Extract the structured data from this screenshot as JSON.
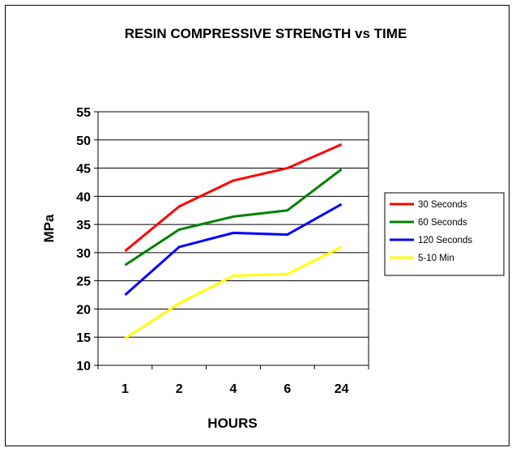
{
  "chart_data": {
    "type": "line",
    "title": "RESIN COMPRESSIVE STRENGTH vs TIME",
    "xlabel": "HOURS",
    "ylabel": "MPa",
    "categories": [
      "1",
      "2",
      "4",
      "6",
      "24"
    ],
    "ylim": [
      10,
      55
    ],
    "yticks": [
      10,
      15,
      20,
      25,
      30,
      35,
      40,
      45,
      50,
      55
    ],
    "grid": true,
    "legend_position": "right",
    "series": [
      {
        "name": "30 Seconds",
        "color": "#ff0000",
        "values": [
          30.3,
          38.2,
          42.8,
          45.0,
          49.2
        ]
      },
      {
        "name": "60 Seconds",
        "color": "#008000",
        "values": [
          27.8,
          34.1,
          36.4,
          37.5,
          44.8
        ]
      },
      {
        "name": "120 Seconds",
        "color": "#0000ff",
        "values": [
          22.5,
          31.0,
          33.5,
          33.2,
          38.6
        ]
      },
      {
        "name": "5-10 Min",
        "color": "#ffff00",
        "values": [
          14.8,
          21.0,
          25.9,
          26.2,
          31.0
        ]
      }
    ]
  }
}
